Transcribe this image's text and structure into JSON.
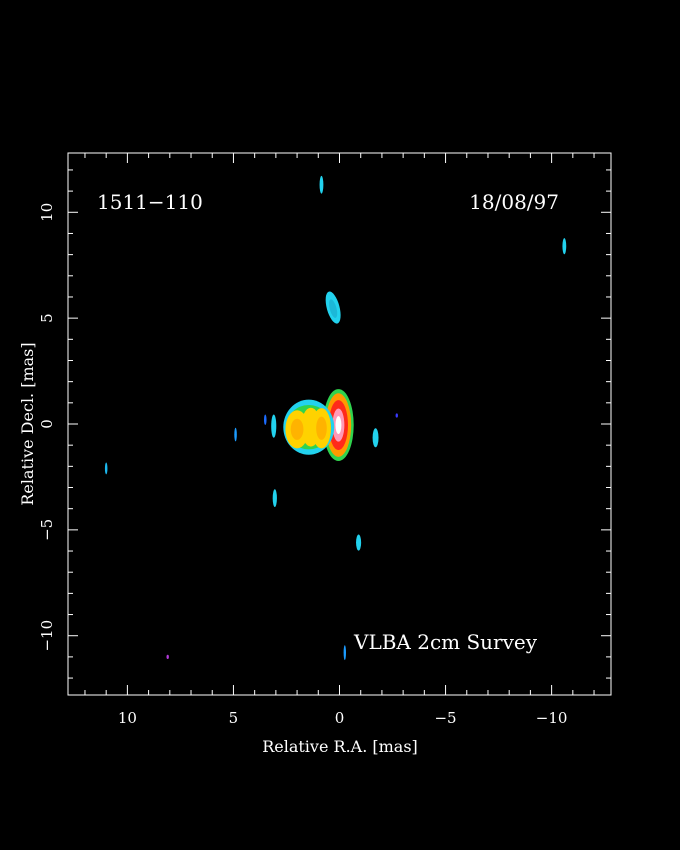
{
  "figure": {
    "source_name": "1511−110",
    "date": "18/08/97",
    "survey": "VLBA 2cm Survey"
  },
  "chart_data": {
    "type": "heatmap",
    "xlabel": "Relative R.A. [mas]",
    "ylabel": "Relative Decl. [mas]",
    "xlim": [
      12.8,
      -12.8
    ],
    "ylim": [
      -12.8,
      12.8
    ],
    "x_ticks": [
      10,
      5,
      0,
      -5,
      -10
    ],
    "x_tick_labels": [
      "10",
      "5",
      "0",
      "−5",
      "−10"
    ],
    "y_ticks": [
      10,
      5,
      0,
      -5,
      -10
    ],
    "y_tick_labels": [
      "10",
      "5",
      "0",
      "−5",
      "−10"
    ],
    "minor_tick_step": 1,
    "grid": false,
    "colors": {
      "background": "#000000",
      "frame": "#ffffff",
      "blue": "#1c6cff",
      "cyan": "#22d2ee",
      "green": "#2ee06a",
      "yellow": "#ffe000",
      "orange": "#ff9a00",
      "red": "#ff2a1a",
      "white": "#ffffff"
    },
    "features": [
      {
        "name": "core-outer",
        "x": 0.05,
        "y": -0.05,
        "rx": 0.72,
        "ry": 1.7,
        "angle": 0,
        "color": "#30d34e"
      },
      {
        "name": "core-orange",
        "x": 0.05,
        "y": -0.05,
        "rx": 0.6,
        "ry": 1.5,
        "angle": 0,
        "color": "#ff9a00"
      },
      {
        "name": "core-red",
        "x": 0.05,
        "y": -0.05,
        "rx": 0.45,
        "ry": 1.18,
        "angle": 0,
        "color": "#ff2a1a"
      },
      {
        "name": "core-pink",
        "x": 0.05,
        "y": -0.05,
        "rx": 0.28,
        "ry": 0.78,
        "angle": 0,
        "color": "#ff9ab8"
      },
      {
        "name": "core-white",
        "x": 0.05,
        "y": -0.05,
        "rx": 0.14,
        "ry": 0.42,
        "angle": 0,
        "color": "#ffffff"
      },
      {
        "name": "jet-outer",
        "x": 1.45,
        "y": -0.15,
        "rx": 1.2,
        "ry": 1.3,
        "angle": 0,
        "color": "#22d2ee"
      },
      {
        "name": "jet-green",
        "x": 1.45,
        "y": -0.15,
        "rx": 1.05,
        "ry": 1.05,
        "angle": 0,
        "color": "#30d34e"
      },
      {
        "name": "knot-1",
        "x": 0.85,
        "y": -0.2,
        "rx": 0.45,
        "ry": 0.95,
        "angle": 0,
        "color": "#ffd200"
      },
      {
        "name": "knot-2",
        "x": 1.35,
        "y": -0.15,
        "rx": 0.45,
        "ry": 0.92,
        "angle": 0,
        "color": "#ffd200"
      },
      {
        "name": "knot-3",
        "x": 2.0,
        "y": -0.25,
        "rx": 0.55,
        "ry": 0.9,
        "angle": 0,
        "color": "#ffd200"
      },
      {
        "name": "knot-1-center",
        "x": 0.85,
        "y": -0.2,
        "rx": 0.25,
        "ry": 0.55,
        "angle": 0,
        "color": "#ffb300"
      },
      {
        "name": "knot-3-center",
        "x": 2.0,
        "y": -0.25,
        "rx": 0.3,
        "ry": 0.5,
        "angle": 0,
        "color": "#ffb300"
      },
      {
        "name": "blob-north",
        "x": 0.3,
        "y": 5.5,
        "rx": 0.3,
        "ry": 0.78,
        "angle": -15,
        "color": "#22d2ee"
      },
      {
        "name": "blob-north-inner",
        "x": 0.3,
        "y": 5.45,
        "rx": 0.16,
        "ry": 0.45,
        "angle": -15,
        "color": "#1cb8d8"
      },
      {
        "name": "blob-top",
        "x": 0.85,
        "y": 11.3,
        "rx": 0.09,
        "ry": 0.42,
        "angle": 0,
        "color": "#22d2ee"
      },
      {
        "name": "blob-top-right",
        "x": -10.6,
        "y": 8.4,
        "rx": 0.09,
        "ry": 0.38,
        "angle": 0,
        "color": "#22d2ee"
      },
      {
        "name": "blob-e1",
        "x": 3.1,
        "y": -0.1,
        "rx": 0.12,
        "ry": 0.55,
        "angle": 0,
        "color": "#22d2ee"
      },
      {
        "name": "blob-e2",
        "x": 3.5,
        "y": 0.2,
        "rx": 0.06,
        "ry": 0.25,
        "angle": 0,
        "color": "#1c6cff"
      },
      {
        "name": "blob-e3",
        "x": 4.9,
        "y": -0.5,
        "rx": 0.06,
        "ry": 0.32,
        "angle": 0,
        "color": "#1c9cff"
      },
      {
        "name": "blob-far-left",
        "x": 11.0,
        "y": -2.1,
        "rx": 0.06,
        "ry": 0.28,
        "angle": 0,
        "color": "#1cb8ee"
      },
      {
        "name": "blob-s1",
        "x": 3.05,
        "y": -3.5,
        "rx": 0.1,
        "ry": 0.42,
        "angle": 0,
        "color": "#22d2ee"
      },
      {
        "name": "blob-w1",
        "x": -1.7,
        "y": -0.65,
        "rx": 0.14,
        "ry": 0.45,
        "angle": 0,
        "color": "#22d2ee"
      },
      {
        "name": "blob-w2",
        "x": -2.7,
        "y": 0.4,
        "rx": 0.04,
        "ry": 0.1,
        "angle": 0,
        "color": "#3a3aff"
      },
      {
        "name": "blob-s2",
        "x": -0.9,
        "y": -5.6,
        "rx": 0.12,
        "ry": 0.38,
        "angle": 0,
        "color": "#22d2ee"
      },
      {
        "name": "blob-s3",
        "x": -0.25,
        "y": -10.8,
        "rx": 0.05,
        "ry": 0.35,
        "angle": 0,
        "color": "#1c9cff"
      },
      {
        "name": "blob-sw",
        "x": 8.1,
        "y": -11.0,
        "rx": 0.05,
        "ry": 0.1,
        "angle": 0,
        "color": "#b23ad8"
      }
    ]
  }
}
